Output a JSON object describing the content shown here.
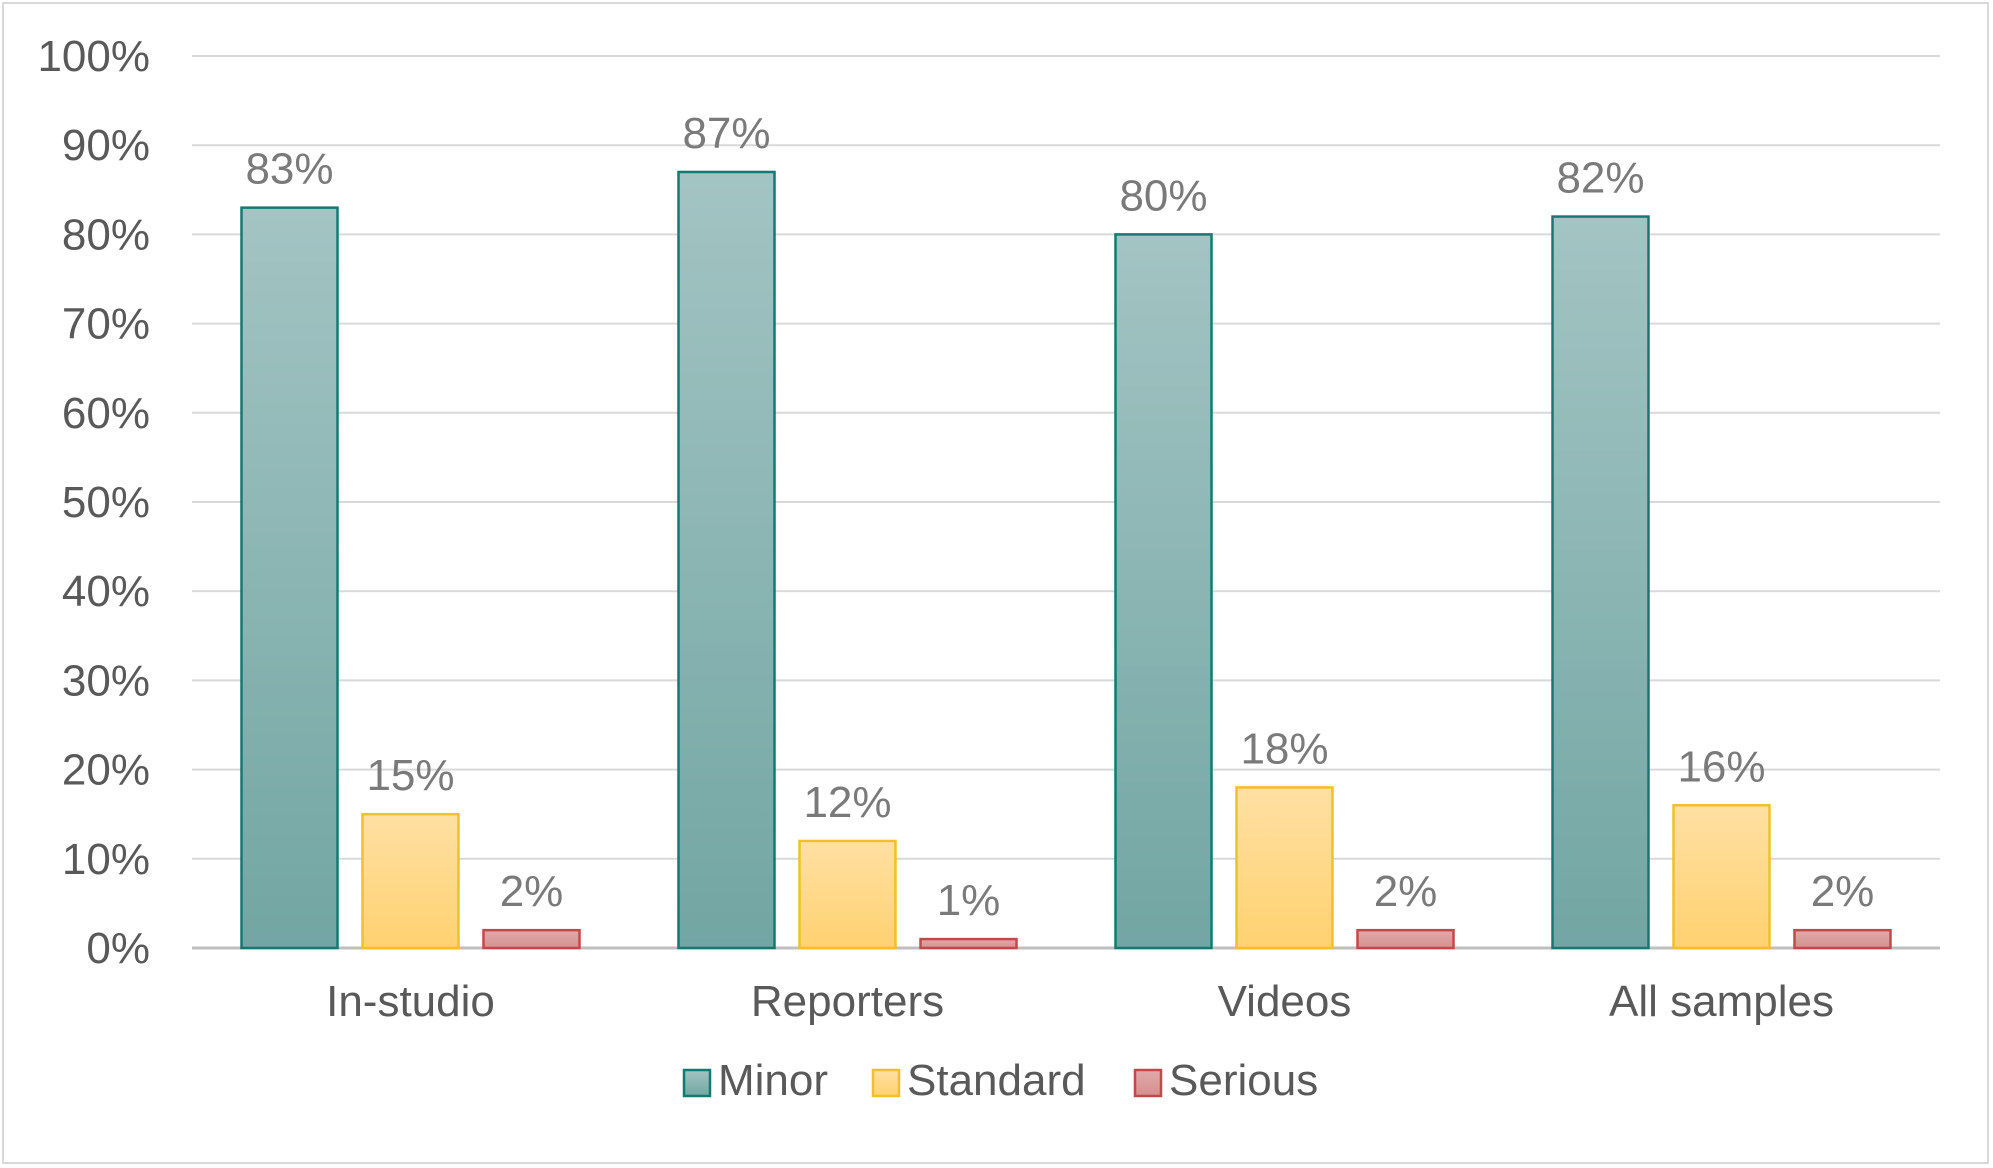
{
  "chart_data": {
    "type": "bar",
    "categories": [
      "In-studio",
      "Reporters",
      "Videos",
      "All samples"
    ],
    "series": [
      {
        "name": "Minor",
        "values": [
          83,
          87,
          80,
          82
        ],
        "labels": [
          "83%",
          "87%",
          "80%",
          "82%"
        ],
        "color": "#7aa9a6",
        "stroke": "#127a72"
      },
      {
        "name": "Standard",
        "values": [
          15,
          12,
          18,
          16
        ],
        "labels": [
          "15%",
          "12%",
          "18%",
          "16%"
        ],
        "color": "#ffd88a",
        "stroke": "#f0c028"
      },
      {
        "name": "Serious",
        "values": [
          2,
          1,
          2,
          2
        ],
        "labels": [
          "2%",
          "1%",
          "2%",
          "2%"
        ],
        "color": "#d99a9a",
        "stroke": "#c04a4a"
      }
    ],
    "y_ticks": [
      "0%",
      "10%",
      "20%",
      "30%",
      "40%",
      "50%",
      "60%",
      "70%",
      "80%",
      "90%",
      "100%"
    ],
    "ylim": [
      0,
      100
    ],
    "grid": true,
    "legend": "bottom",
    "title": "",
    "xlabel": "",
    "ylabel": ""
  }
}
